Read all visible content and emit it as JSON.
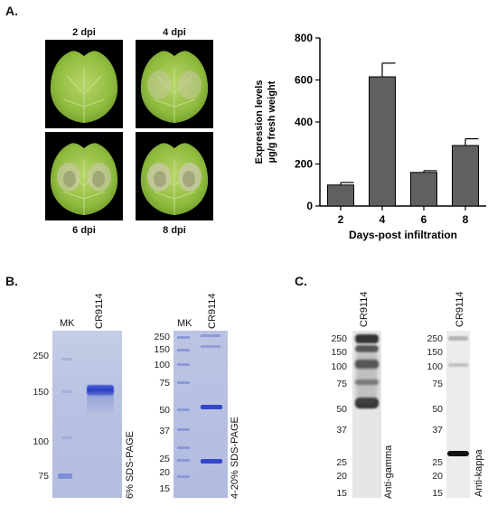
{
  "panels": {
    "a_label": "A.",
    "b_label": "B.",
    "c_label": "C."
  },
  "leaves": [
    {
      "label": "2 dpi",
      "lesion": 0
    },
    {
      "label": "4 dpi",
      "lesion": 1
    },
    {
      "label": "6 dpi",
      "lesion": 2
    },
    {
      "label": "8 dpi",
      "lesion": 3
    }
  ],
  "chart_data": {
    "type": "bar",
    "categories": [
      "2",
      "4",
      "6",
      "8"
    ],
    "values": [
      100,
      615,
      160,
      288
    ],
    "errors": [
      12,
      65,
      8,
      32
    ],
    "ylim": [
      0,
      800
    ],
    "yticks": [
      0,
      200,
      400,
      600,
      800
    ],
    "ylabel_line1": "Expression levels",
    "ylabel_line2": "µg/g fresh weight",
    "xlabel": "Days-post infiltration",
    "bar_color": "#606060"
  },
  "gel_b1": {
    "mk": "MK",
    "sample": "CR9114",
    "markers": [
      "250",
      "150",
      "100",
      "75"
    ],
    "caption": "6% SDS-PAGE"
  },
  "gel_b2": {
    "mk": "MK",
    "sample": "CR9114",
    "markers": [
      "250",
      "150",
      "100",
      "75",
      "50",
      "37",
      "25",
      "20",
      "15"
    ],
    "caption": "4-20% SDS-PAGE"
  },
  "blot_c1": {
    "sample": "CR9114",
    "markers": [
      "250",
      "150",
      "100",
      "75",
      "50",
      "37",
      "25",
      "20",
      "15"
    ],
    "caption": "Anti-gamma"
  },
  "blot_c2": {
    "sample": "CR9114",
    "markers": [
      "250",
      "150",
      "100",
      "75",
      "50",
      "37",
      "25",
      "20",
      "15"
    ],
    "caption": "Anti-kappa"
  }
}
